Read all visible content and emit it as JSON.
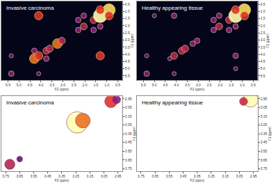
{
  "chart_data": [
    {
      "type": "scatter",
      "title": "Invasive carcinoma",
      "x_label": "F2 (ppm)",
      "y_label": "F1 (ppm)",
      "x": [
        5.35,
        4.3,
        4.1,
        3.75,
        3.6,
        3.25,
        3.05,
        2.3,
        2.05,
        1.6,
        1.3,
        0.9,
        4.1,
        1.3,
        1.3,
        0.9,
        2.05,
        1.3,
        5.35,
        4.1,
        2.3,
        1.6,
        4.3,
        3.75
      ],
      "y": [
        5.35,
        4.3,
        4.1,
        3.75,
        3.6,
        3.25,
        3.05,
        2.3,
        2.05,
        1.6,
        1.3,
        0.9,
        1.3,
        4.1,
        0.9,
        1.3,
        1.3,
        2.05,
        4.1,
        5.35,
        1.6,
        2.3,
        3.75,
        4.3
      ],
      "sizes": [
        3,
        6,
        5,
        4,
        4,
        6,
        4,
        3,
        4,
        4,
        9,
        8,
        5,
        5,
        5,
        5,
        3,
        3,
        2,
        2,
        3,
        3,
        3,
        3
      ],
      "xlim": [
        5.8,
        0.3
      ],
      "ylim": [
        5.8,
        0.3
      ],
      "xticks": [
        {
          "value": 5.5,
          "label": "5.5"
        },
        {
          "value": 5,
          "label": "5.0"
        },
        {
          "value": 4.5,
          "label": "4.5"
        },
        {
          "value": 4,
          "label": "4.0"
        },
        {
          "value": 3.5,
          "label": "3.5"
        },
        {
          "value": 3,
          "label": "3.0"
        },
        {
          "value": 2.5,
          "label": "2.5"
        },
        {
          "value": 2,
          "label": "2.0"
        },
        {
          "value": 1.5,
          "label": "1.5"
        },
        {
          "value": 1,
          "label": "1.0"
        },
        {
          "value": 0.5,
          "label": "0.5"
        }
      ],
      "yticks": [
        {
          "value": 0.5,
          "label": "0.5"
        },
        {
          "value": 1,
          "label": "1.0"
        },
        {
          "value": 1.5,
          "label": "1.5"
        },
        {
          "value": 2,
          "label": "2.0"
        },
        {
          "value": 2.5,
          "label": "2.5"
        },
        {
          "value": 3,
          "label": "3.0"
        },
        {
          "value": 3.5,
          "label": "3.5"
        },
        {
          "value": 4,
          "label": "4.0"
        },
        {
          "value": 4.5,
          "label": "4.5"
        },
        {
          "value": 5,
          "label": "5.0"
        },
        {
          "value": 5.5,
          "label": "5.5"
        }
      ]
    },
    {
      "type": "scatter",
      "title": "Healthy appearing tissue",
      "x_label": "F2 (ppm)",
      "y_label": "F1 (ppm)",
      "x": [
        5.35,
        4.3,
        4.1,
        3.75,
        3.6,
        3.25,
        3.05,
        2.3,
        2.05,
        1.6,
        1.3,
        0.9,
        4.1,
        1.3,
        1.3,
        0.9,
        2.05,
        1.3,
        5.35,
        4.1,
        2.3,
        1.6,
        5.0,
        1.3
      ],
      "y": [
        5.35,
        4.3,
        4.1,
        3.75,
        3.6,
        3.25,
        3.05,
        2.3,
        2.05,
        1.6,
        1.3,
        0.9,
        1.3,
        4.1,
        0.9,
        1.3,
        1.3,
        2.05,
        4.1,
        5.35,
        1.6,
        2.3,
        1.3,
        5.0
      ],
      "sizes": [
        3,
        2,
        4,
        4,
        4,
        3,
        3,
        3,
        4,
        4,
        9,
        8,
        3,
        3,
        5,
        5,
        3,
        3,
        2,
        2,
        3,
        3,
        2,
        2
      ],
      "xlim": [
        5.8,
        0.3
      ],
      "ylim": [
        5.8,
        0.3
      ],
      "xticks": [
        {
          "value": 5.5,
          "label": "5.5"
        },
        {
          "value": 5,
          "label": "5.0"
        },
        {
          "value": 4.5,
          "label": "4.5"
        },
        {
          "value": 4,
          "label": "4.0"
        },
        {
          "value": 3.5,
          "label": "3.5"
        },
        {
          "value": 3,
          "label": "3.0"
        },
        {
          "value": 2.5,
          "label": "2.5"
        },
        {
          "value": 2,
          "label": "2.0"
        },
        {
          "value": 1.5,
          "label": "1.5"
        },
        {
          "value": 1,
          "label": "1.0"
        },
        {
          "value": 0.5,
          "label": "0.5"
        }
      ],
      "yticks": [
        {
          "value": 0.5,
          "label": "0.5"
        },
        {
          "value": 1,
          "label": "1.0"
        },
        {
          "value": 1.5,
          "label": "1.5"
        },
        {
          "value": 2,
          "label": "2.0"
        },
        {
          "value": 2.5,
          "label": "2.5"
        },
        {
          "value": 3,
          "label": "3.0"
        },
        {
          "value": 3.5,
          "label": "3.5"
        },
        {
          "value": 4,
          "label": "4.0"
        },
        {
          "value": 4.5,
          "label": "4.5"
        },
        {
          "value": 5,
          "label": "5.0"
        },
        {
          "value": 5.5,
          "label": "5.5"
        }
      ]
    },
    {
      "type": "scatter",
      "title": "Invasive carcinoma",
      "x_label": "F2 (ppm)",
      "y_label": "F1 (ppm)",
      "x": [
        3.72,
        3.65,
        3.24,
        3.2,
        3.0,
        2.96
      ],
      "y": [
        3.7,
        3.64,
        3.22,
        3.2,
        2.98,
        2.96
      ],
      "sizes": [
        4,
        2,
        9,
        6,
        5,
        3
      ],
      "xlim": [
        3.78,
        2.92
      ],
      "ylim": [
        3.78,
        2.92
      ],
      "xticks": [
        3.75,
        3.65,
        3.55,
        3.45,
        3.35,
        3.25,
        3.15,
        3.05,
        2.95
      ],
      "yticks": [
        2.95,
        3.05,
        3.15,
        3.25,
        3.35,
        3.45,
        3.55,
        3.65,
        3.75
      ]
    },
    {
      "type": "scatter",
      "title": "Healthy appearing tissue",
      "x_label": "F2 (ppm)",
      "y_label": "F1 (ppm)",
      "x": [
        2.97,
        3.02
      ],
      "y": [
        2.96,
        2.98
      ],
      "sizes": [
        6,
        3
      ],
      "xlim": [
        3.78,
        2.92
      ],
      "ylim": [
        3.78,
        2.92
      ],
      "xticks": [
        3.75,
        3.65,
        3.55,
        3.45,
        3.35,
        3.25,
        3.15,
        3.05,
        2.95
      ],
      "yticks": [
        2.95,
        3.05,
        3.15,
        3.25,
        3.35,
        3.45,
        3.55,
        3.65,
        3.75
      ]
    }
  ]
}
